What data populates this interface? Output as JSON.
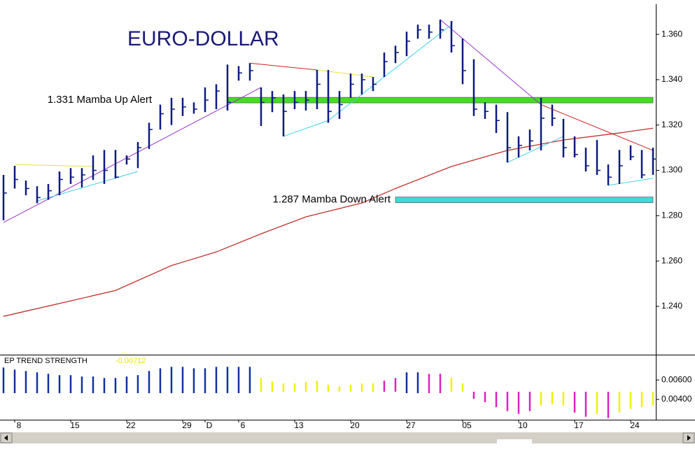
{
  "chart_data": [
    {
      "type": "ohlc",
      "title": "EURO-DOLLAR",
      "categories": [
        null,
        "8",
        null,
        null,
        null,
        null,
        "15",
        null,
        null,
        null,
        null,
        "22",
        null,
        null,
        null,
        null,
        "29",
        null,
        "D",
        null,
        null,
        "6",
        null,
        null,
        null,
        null,
        "13",
        null,
        null,
        null,
        null,
        "20",
        null,
        null,
        null,
        null,
        "27",
        null,
        null,
        null,
        null,
        "05",
        null,
        null,
        null,
        null,
        "10",
        null,
        null,
        null,
        null,
        "17",
        null,
        null,
        null,
        null,
        "24",
        null,
        null
      ],
      "high": [
        1.298,
        1.302,
        1.2955,
        1.293,
        1.294,
        1.2995,
        1.301,
        1.301,
        1.3066,
        1.309,
        1.309,
        1.3066,
        1.3125,
        1.321,
        1.329,
        1.332,
        1.332,
        1.33,
        1.3366,
        1.338,
        1.3467,
        1.346,
        1.3473,
        1.3366,
        1.335,
        1.3335,
        1.335,
        1.335,
        1.3443,
        1.3443,
        1.335,
        1.3427,
        1.3427,
        1.3412,
        1.352,
        1.355,
        1.3612,
        1.3643,
        1.3643,
        1.3665,
        1.3659,
        1.3581,
        1.349,
        1.33,
        1.329,
        1.3257,
        1.315,
        1.318,
        1.332,
        1.329,
        1.3227,
        1.315,
        1.31,
        1.3134,
        1.3026,
        1.309,
        1.311,
        1.309,
        1.31
      ],
      "low": [
        1.278,
        1.292,
        1.289,
        1.2855,
        1.287,
        1.289,
        1.294,
        1.2925,
        1.2958,
        1.294,
        1.2965,
        1.3026,
        1.301,
        1.3094,
        1.318,
        1.32,
        1.324,
        1.325,
        1.3257,
        1.327,
        1.3264,
        1.3396,
        1.3396,
        1.3196,
        1.3257,
        1.315,
        1.327,
        1.3264,
        1.327,
        1.321,
        1.3227,
        1.332,
        1.3335,
        1.335,
        1.3412,
        1.3473,
        1.3504,
        1.3581,
        1.3581,
        1.3581,
        1.352,
        1.338,
        1.324,
        1.3227,
        1.3165,
        1.3035,
        1.3057,
        1.3088,
        1.3088,
        1.3196,
        1.3057,
        1.3057,
        1.2995,
        1.298,
        1.2934,
        1.294,
        1.3045,
        1.2965,
        1.298
      ],
      "close": [
        1.29,
        1.296,
        1.292,
        1.288,
        1.291,
        1.296,
        1.297,
        1.298,
        1.3,
        1.3,
        1.297,
        1.305,
        1.31,
        1.318,
        1.325,
        1.327,
        1.328,
        1.327,
        1.331,
        1.335,
        1.33,
        1.343,
        1.344,
        1.33,
        1.332,
        1.326,
        1.33,
        1.331,
        1.338,
        1.326,
        1.329,
        1.338,
        1.34,
        1.338,
        1.348,
        1.352,
        1.357,
        1.362,
        1.361,
        1.362,
        1.355,
        1.344,
        1.327,
        1.326,
        1.322,
        1.31,
        1.311,
        1.313,
        1.323,
        1.323,
        1.31,
        1.307,
        1.302,
        1.3,
        1.297,
        1.302,
        1.306,
        1.298,
        1.305
      ],
      "color": "#0c1a82",
      "ma": {
        "color": "#c0302a",
        "x": [
          0,
          6,
          10,
          15,
          19,
          23,
          27,
          32,
          35,
          40,
          45,
          50,
          55,
          58
        ],
        "values": [
          1.2356,
          1.2424,
          1.247,
          1.258,
          1.264,
          1.272,
          1.2795,
          1.2856,
          1.292,
          1.3017,
          1.3088,
          1.3134,
          1.3165,
          1.3186
        ]
      },
      "lines": [
        {
          "color": "#9933cc",
          "x": [
            0,
            23
          ],
          "values": [
            1.277,
            1.3366
          ]
        },
        {
          "color": "#9933cc",
          "x": [
            39,
            48
          ],
          "values": [
            1.3665,
            1.329
          ]
        },
        {
          "color": "#cc2222",
          "x": [
            48,
            58
          ],
          "values": [
            1.329,
            1.3088
          ]
        },
        {
          "color": "#cc2222",
          "x": [
            22,
            28
          ],
          "values": [
            1.3473,
            1.3443
          ]
        },
        {
          "color": "#e8e040",
          "x": [
            28,
            33
          ],
          "values": [
            1.3443,
            1.3412
          ]
        },
        {
          "color": "#e8e040",
          "x": [
            1,
            8
          ],
          "values": [
            1.3026,
            1.3017
          ]
        },
        {
          "color": "#40d0e8",
          "x": [
            3,
            12
          ],
          "values": [
            1.2865,
            1.2995
          ]
        },
        {
          "color": "#40d0e8",
          "x": [
            25,
            29,
            40
          ],
          "values": [
            1.315,
            1.322,
            1.3643
          ]
        },
        {
          "color": "#40d0e8",
          "x": [
            45,
            50
          ],
          "values": [
            1.3035,
            1.315
          ]
        },
        {
          "color": "#40d0e8",
          "x": [
            54,
            58
          ],
          "values": [
            1.2934,
            1.2965
          ]
        }
      ],
      "alerts": [
        {
          "label": "1.331 Mamba Up Alert",
          "value": 1.331,
          "from": 20,
          "to": 58,
          "color": "#44dd22"
        },
        {
          "label": "1.287 Mamba Down Alert",
          "value": 1.287,
          "from": 35,
          "to": 58,
          "color": "#40d8d8"
        }
      ],
      "ylim": [
        1.2193,
        1.3727
      ],
      "yticks": [
        {
          "value": 1.24,
          "label": "1.240"
        },
        {
          "value": 1.26,
          "label": "1.260"
        },
        {
          "value": 1.28,
          "label": "1.280"
        },
        {
          "value": 1.3,
          "label": "1.300"
        },
        {
          "value": 1.32,
          "label": "1.320"
        },
        {
          "value": 1.34,
          "label": "1.340"
        },
        {
          "value": 1.36,
          "label": "1.360"
        }
      ]
    },
    {
      "type": "range-bar",
      "title": "EP TREND STRENGTH",
      "last_value": -0.00712,
      "last_value_color": "#e8e800",
      "ylim": [
        0.0019,
        0.0084
      ],
      "yticks": [
        {
          "value": 0.006,
          "label": "0.00600"
        },
        {
          "value": 0.004,
          "label": "0.00400"
        }
      ],
      "high": [
        0.00729,
        0.00707,
        0.00693,
        0.00679,
        0.00664,
        0.0065,
        0.0065,
        0.00636,
        0.00636,
        0.00621,
        0.00621,
        0.00636,
        0.0065,
        0.00693,
        0.00721,
        0.00736,
        0.00736,
        0.00721,
        0.00721,
        0.00736,
        0.00736,
        0.00736,
        0.00736,
        0.00621,
        0.00586,
        0.00564,
        0.00564,
        0.00579,
        0.00593,
        0.0055,
        0.00536,
        0.0055,
        0.00564,
        0.00564,
        0.00593,
        0.00621,
        0.00679,
        0.00679,
        0.00664,
        0.00664,
        0.00621,
        0.00564,
        0.00479,
        0.00479,
        0.00479,
        0.00479,
        0.00479,
        0.00479,
        0.00479,
        0.00479,
        0.00479,
        0.00479,
        0.00479,
        0.00479,
        0.00479,
        0.00479,
        0.00479,
        0.00479,
        0.00479
      ],
      "low": [
        0.00464,
        0.00464,
        0.00464,
        0.00464,
        0.00464,
        0.00464,
        0.00464,
        0.00464,
        0.00464,
        0.00464,
        0.00464,
        0.00464,
        0.00464,
        0.00464,
        0.00464,
        0.00464,
        0.00464,
        0.00464,
        0.00464,
        0.00464,
        0.00464,
        0.00464,
        0.00464,
        0.00479,
        0.00479,
        0.00479,
        0.00479,
        0.00479,
        0.00479,
        0.00479,
        0.00479,
        0.00479,
        0.00479,
        0.00479,
        0.00479,
        0.00479,
        0.00464,
        0.00464,
        0.00464,
        0.00464,
        0.00479,
        0.00479,
        0.00407,
        0.00371,
        0.00321,
        0.00279,
        0.0025,
        0.00279,
        0.00336,
        0.0035,
        0.00336,
        0.00264,
        0.00221,
        0.0025,
        0.00207,
        0.00264,
        0.003,
        0.00321,
        0.00336
      ],
      "colors": [
        "#1030a0",
        "#1030a0",
        "#1030a0",
        "#1030a0",
        "#1030a0",
        "#1030a0",
        "#1030a0",
        "#1030a0",
        "#1030a0",
        "#1030a0",
        "#1030a0",
        "#1030a0",
        "#1030a0",
        "#1030a0",
        "#1030a0",
        "#1030a0",
        "#1030a0",
        "#1030a0",
        "#1030a0",
        "#1030a0",
        "#1030a0",
        "#1030a0",
        "#1030a0",
        "#f0f000",
        "#f0f000",
        "#f0f000",
        "#f0f000",
        "#f0f000",
        "#f0f000",
        "#f0f000",
        "#f0f000",
        "#f0f000",
        "#f0f000",
        "#f0f000",
        "#e020c0",
        "#e020c0",
        "#1030a0",
        "#1030a0",
        "#e020c0",
        "#e020c0",
        "#f0f000",
        "#f0f000",
        "#e020c0",
        "#e020c0",
        "#e020c0",
        "#e020c0",
        "#e020c0",
        "#e020c0",
        "#f0f000",
        "#f0f000",
        "#f0f000",
        "#e020c0",
        "#e020c0",
        "#f0f000",
        "#e020c0",
        "#f0f000",
        "#f0f000",
        "#f0f000",
        "#f0f000"
      ]
    }
  ]
}
